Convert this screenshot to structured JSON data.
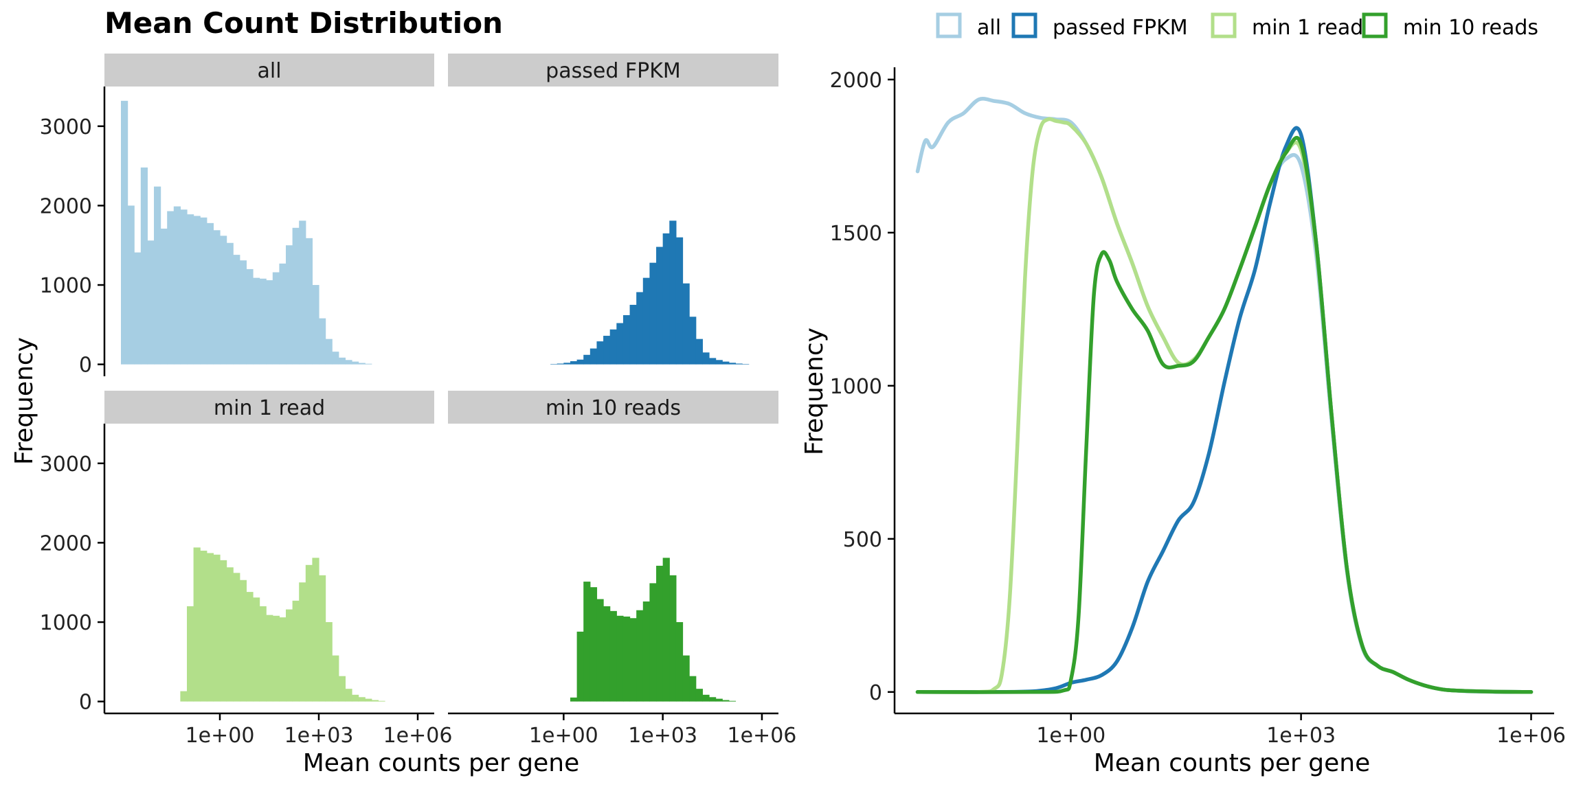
{
  "title": "Mean Count Distribution",
  "colors": {
    "all": "#A6CEE3",
    "passed FPKM": "#1F78B4",
    "min 1 read": "#B2DF8A",
    "min 10 reads": "#33A02C",
    "strip_bg": "#CCCCCC"
  },
  "legend": [
    "all",
    "passed FPKM",
    "min 1 read",
    "min 10 reads"
  ],
  "chart_data": [
    {
      "type": "histogram",
      "layout": "facet-2x2",
      "xlabel": "Mean counts per gene",
      "ylabel": "Frequency",
      "x_scale": "log10",
      "x_ticks": [
        "1e+00",
        "1e+03",
        "1e+06"
      ],
      "y_ticks": [
        "0",
        "1000",
        "2000",
        "3000"
      ],
      "xlim_log10": [
        -3.5,
        6.5
      ],
      "ylim": [
        -150,
        3500
      ],
      "bin_width_log10": 0.2,
      "panels": [
        {
          "name": "all",
          "bin_start_log10": -3,
          "values": [
            3320,
            2000,
            1410,
            2480,
            1560,
            2240,
            1710,
            1930,
            1990,
            1950,
            1890,
            1870,
            1850,
            1780,
            1690,
            1620,
            1530,
            1380,
            1310,
            1200,
            1090,
            1080,
            1060,
            1160,
            1270,
            1500,
            1720,
            1810,
            1590,
            1000,
            580,
            320,
            160,
            85,
            55,
            35,
            18,
            8
          ]
        },
        {
          "name": "passed FPKM",
          "bin_start_log10": -0.4,
          "values": [
            5,
            10,
            20,
            40,
            60,
            120,
            200,
            290,
            360,
            440,
            520,
            620,
            750,
            910,
            1090,
            1280,
            1480,
            1650,
            1810,
            1600,
            1020,
            600,
            320,
            150,
            80,
            55,
            35,
            20,
            10,
            5
          ]
        },
        {
          "name": "min 1 read",
          "bin_start_log10": -1.2,
          "values": [
            130,
            1200,
            1940,
            1900,
            1870,
            1850,
            1780,
            1690,
            1620,
            1530,
            1380,
            1310,
            1200,
            1090,
            1080,
            1060,
            1160,
            1270,
            1500,
            1720,
            1810,
            1590,
            1000,
            580,
            320,
            160,
            85,
            55,
            35,
            18,
            8
          ]
        },
        {
          "name": "min 10 reads",
          "bin_start_log10": 0.2,
          "values": [
            50,
            880,
            1510,
            1440,
            1290,
            1200,
            1140,
            1080,
            1070,
            1050,
            1150,
            1260,
            1490,
            1710,
            1810,
            1590,
            1000,
            580,
            320,
            160,
            85,
            55,
            35,
            18,
            8
          ]
        }
      ]
    },
    {
      "type": "line",
      "xlabel": "Mean counts per gene",
      "ylabel": "Frequency",
      "x_scale": "log10",
      "x_ticks": [
        "1e+00",
        "1e+03",
        "1e+06"
      ],
      "y_ticks": [
        "0",
        "500",
        "1000",
        "1500",
        "2000"
      ],
      "xlim_log10": [
        -2.3,
        6.3
      ],
      "ylim": [
        -70,
        2040
      ],
      "series": [
        {
          "name": "all",
          "x_log10": [
            -2.0,
            -1.9,
            -1.8,
            -1.6,
            -1.4,
            -1.2,
            -1.0,
            -0.8,
            -0.6,
            -0.4,
            -0.2,
            0.0,
            0.2,
            0.4,
            0.6,
            0.8,
            1.0,
            1.2,
            1.4,
            1.6,
            1.8,
            2.0,
            2.2,
            2.4,
            2.6,
            2.8,
            3.0,
            3.2,
            3.4,
            3.6,
            3.8,
            4.0,
            4.2,
            4.4,
            4.6,
            4.8,
            5.0,
            5.2,
            5.4,
            5.6,
            5.8,
            6.0
          ],
          "values": [
            1700,
            1800,
            1780,
            1860,
            1890,
            1935,
            1930,
            1920,
            1890,
            1875,
            1870,
            1860,
            1790,
            1680,
            1530,
            1400,
            1260,
            1160,
            1075,
            1085,
            1160,
            1250,
            1380,
            1520,
            1660,
            1740,
            1720,
            1420,
            880,
            390,
            145,
            85,
            65,
            40,
            22,
            10,
            5,
            2,
            1,
            0,
            0,
            0
          ]
        },
        {
          "name": "passed FPKM",
          "x_log10": [
            -2.0,
            -1.0,
            -0.5,
            -0.2,
            0.0,
            0.2,
            0.4,
            0.6,
            0.8,
            1.0,
            1.2,
            1.4,
            1.6,
            1.8,
            2.0,
            2.2,
            2.4,
            2.6,
            2.8,
            3.0,
            3.2,
            3.4,
            3.6,
            3.8,
            4.0,
            4.2,
            4.4,
            4.6,
            4.8,
            5.0,
            5.5,
            6.0
          ],
          "values": [
            0,
            0,
            2,
            12,
            30,
            40,
            55,
            100,
            210,
            360,
            460,
            560,
            620,
            780,
            1010,
            1220,
            1380,
            1600,
            1780,
            1820,
            1460,
            900,
            400,
            150,
            85,
            65,
            40,
            22,
            10,
            5,
            1,
            0
          ]
        },
        {
          "name": "min 1 read",
          "x_log10": [
            -2.0,
            -1.2,
            -1.0,
            -0.9,
            -0.8,
            -0.7,
            -0.6,
            -0.5,
            -0.4,
            -0.3,
            -0.2,
            -0.1,
            0.0,
            0.2,
            0.4,
            0.6,
            0.8,
            1.0,
            1.2,
            1.4,
            1.6,
            1.8,
            2.0,
            2.2,
            2.4,
            2.6,
            2.8,
            3.0,
            3.2,
            3.4,
            3.6,
            3.8,
            4.0,
            4.2,
            4.4,
            4.6,
            4.8,
            5.0,
            5.5,
            6.0
          ],
          "values": [
            0,
            0,
            10,
            60,
            300,
            800,
            1350,
            1700,
            1840,
            1870,
            1865,
            1860,
            1850,
            1790,
            1680,
            1530,
            1400,
            1260,
            1160,
            1075,
            1085,
            1160,
            1250,
            1380,
            1520,
            1660,
            1760,
            1770,
            1450,
            900,
            400,
            150,
            85,
            65,
            40,
            22,
            10,
            5,
            1,
            0
          ]
        },
        {
          "name": "min 10 reads",
          "x_log10": [
            -2.0,
            -0.5,
            -0.1,
            0.0,
            0.1,
            0.2,
            0.3,
            0.4,
            0.5,
            0.6,
            0.8,
            1.0,
            1.2,
            1.4,
            1.6,
            1.8,
            2.0,
            2.2,
            2.4,
            2.6,
            2.8,
            3.0,
            3.2,
            3.4,
            3.6,
            3.8,
            4.0,
            4.2,
            4.4,
            4.6,
            4.8,
            5.0,
            5.5,
            6.0
          ],
          "values": [
            0,
            0,
            5,
            40,
            250,
            800,
            1300,
            1430,
            1410,
            1340,
            1250,
            1180,
            1070,
            1065,
            1080,
            1160,
            1250,
            1380,
            1520,
            1660,
            1760,
            1790,
            1460,
            900,
            400,
            150,
            85,
            65,
            40,
            22,
            10,
            5,
            1,
            0
          ]
        }
      ]
    }
  ]
}
